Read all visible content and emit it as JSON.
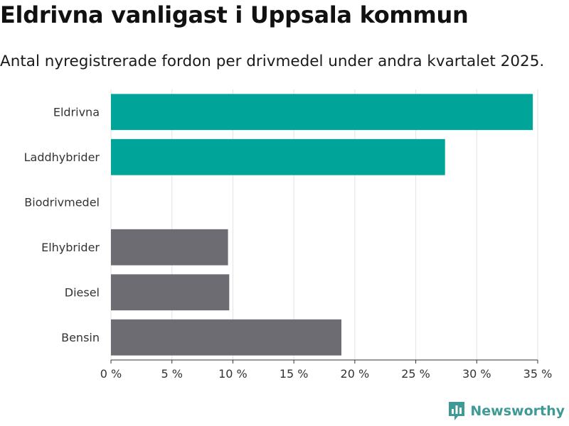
{
  "header": {
    "title": "Eldrivna vanligast i Uppsala kommun",
    "subtitle": "Antal nyregistrerade fordon per drivmedel under andra kvartalet 2025."
  },
  "brand": {
    "name": "Newsworthy",
    "icon": "newsworthy-logo-icon",
    "color": "#3f9a96"
  },
  "chart_data": {
    "type": "bar",
    "orientation": "horizontal",
    "title": "Eldrivna vanligast i Uppsala kommun",
    "subtitle": "Antal nyregistrerade fordon per drivmedel under andra kvartalet 2025.",
    "xlabel": "",
    "ylabel": "",
    "categories": [
      "Eldrivna",
      "Laddhybrider",
      "Biodrivmedel",
      "Elhybrider",
      "Diesel",
      "Bensin"
    ],
    "values": [
      34.6,
      27.4,
      0,
      9.6,
      9.7,
      18.9
    ],
    "colors": [
      "#00a499",
      "#00a499",
      "#00a499",
      "#6d6c73",
      "#6d6c73",
      "#6d6c73"
    ],
    "xlim": [
      0,
      35
    ],
    "xticks": [
      0,
      5,
      10,
      15,
      20,
      25,
      30,
      35
    ],
    "xtick_labels": [
      "0 %",
      "5 %",
      "10 %",
      "15 %",
      "20 %",
      "25 %",
      "30 %",
      "35 %"
    ],
    "grid": "vertical",
    "legend": "none"
  }
}
